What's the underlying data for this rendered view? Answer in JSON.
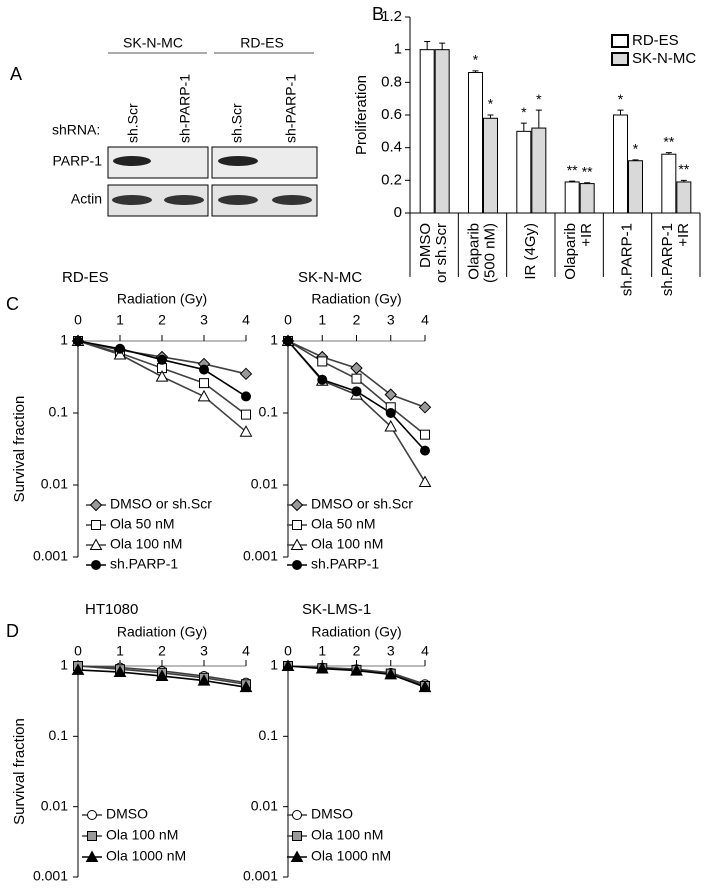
{
  "panel_labels": [
    "A",
    "B",
    "C",
    "D"
  ],
  "blot": {
    "row_header": "shRNA:",
    "groups": [
      {
        "name": "SK-N-MC",
        "lanes": [
          "sh.Scr",
          "sh-PARP-1"
        ]
      },
      {
        "name": "RD-ES",
        "lanes": [
          "sh.Scr",
          "sh-PARP-1"
        ]
      }
    ],
    "rows": [
      "PARP-1",
      "Actin"
    ]
  },
  "chart_data": [
    {
      "type": "bar",
      "ylabel": "Proliferation",
      "categories": [
        "DMSO\nor sh.Scr",
        "Olaparib\n(500 nM)",
        "IR (4Gy)",
        "Olaparib\n+IR",
        "sh.PARP-1",
        "sh.PARP-1\n+IR"
      ],
      "series": [
        {
          "name": "RD-ES",
          "color": "#ffffff",
          "values": [
            1.0,
            0.86,
            0.5,
            0.19,
            0.6,
            0.36
          ],
          "errors": [
            0.05,
            0.01,
            0.05,
            0.005,
            0.03,
            0.01
          ],
          "significance": [
            null,
            "*",
            "*",
            "**",
            "*",
            "**"
          ]
        },
        {
          "name": "SK-N-MC",
          "color": "#d9d9d9",
          "values": [
            1.0,
            0.58,
            0.52,
            0.18,
            0.32,
            0.19
          ],
          "errors": [
            0.04,
            0.02,
            0.11,
            0.005,
            0.005,
            0.01
          ],
          "significance": [
            null,
            "*",
            "*",
            "**",
            "*",
            "**"
          ]
        }
      ],
      "ylim": [
        0,
        1.2
      ],
      "yticks": [
        0,
        0.2,
        0.4,
        0.6,
        0.8,
        1,
        1.2
      ],
      "legend": "upper right"
    },
    {
      "type": "line",
      "title": "RD-ES",
      "xlabel": "Radiation (Gy)",
      "ylabel": "Survival fraction",
      "log_y": true,
      "x": [
        0,
        1,
        2,
        3,
        4
      ],
      "xlim": [
        0,
        4
      ],
      "xticks": [
        0,
        1,
        2,
        3,
        4
      ],
      "ylim": [
        0.001,
        1
      ],
      "yticks": [
        1,
        0.1,
        0.01,
        0.001
      ],
      "legend": "lower left",
      "series": [
        {
          "name": "DMSO or sh.Scr",
          "color": "#404040",
          "marker": "diamond",
          "fill": "#999999",
          "values": [
            1,
            0.75,
            0.6,
            0.48,
            0.35
          ]
        },
        {
          "name": "Ola 50 nM",
          "color": "#404040",
          "marker": "square",
          "fill": "#ffffff",
          "values": [
            1,
            0.68,
            0.42,
            0.26,
            0.095
          ]
        },
        {
          "name": "Ola 100 nM",
          "color": "#404040",
          "marker": "triangle",
          "fill": "#ffffff",
          "values": [
            1,
            0.65,
            0.32,
            0.17,
            0.055
          ]
        },
        {
          "name": "sh.PARP-1",
          "color": "#000000",
          "marker": "circle",
          "fill": "#000000",
          "values": [
            1,
            0.78,
            0.55,
            0.4,
            0.17
          ]
        }
      ]
    },
    {
      "type": "line",
      "title": "SK-N-MC",
      "xlabel": "Radiation (Gy)",
      "log_y": true,
      "x": [
        0,
        1,
        2,
        3,
        4
      ],
      "xlim": [
        0,
        4
      ],
      "xticks": [
        0,
        1,
        2,
        3,
        4
      ],
      "ylim": [
        0.001,
        1
      ],
      "yticks": [
        1,
        0.1,
        0.01,
        0.001
      ],
      "legend": "lower left",
      "series": [
        {
          "name": "DMSO or sh.Scr",
          "color": "#404040",
          "marker": "diamond",
          "fill": "#999999",
          "values": [
            1,
            0.6,
            0.42,
            0.18,
            0.12
          ]
        },
        {
          "name": "Ola 50 nM",
          "color": "#404040",
          "marker": "square",
          "fill": "#ffffff",
          "values": [
            1,
            0.52,
            0.3,
            0.12,
            0.05
          ]
        },
        {
          "name": "Ola 100 nM",
          "color": "#404040",
          "marker": "triangle",
          "fill": "#ffffff",
          "values": [
            1,
            0.28,
            0.18,
            0.065,
            0.011
          ]
        },
        {
          "name": "sh.PARP-1",
          "color": "#000000",
          "marker": "circle",
          "fill": "#000000",
          "values": [
            1,
            0.29,
            0.2,
            0.1,
            0.03
          ]
        }
      ]
    },
    {
      "type": "line",
      "title": "HT1080",
      "xlabel": "Radiation (Gy)",
      "ylabel": "Survival fraction",
      "log_y": true,
      "x": [
        0,
        1,
        2,
        3,
        4
      ],
      "xlim": [
        0,
        4
      ],
      "xticks": [
        0,
        1,
        2,
        3,
        4
      ],
      "ylim": [
        0.001,
        1
      ],
      "yticks": [
        1,
        0.1,
        0.01,
        0.001
      ],
      "legend": "lower left",
      "series": [
        {
          "name": "DMSO",
          "color": "#404040",
          "marker": "circle",
          "fill": "#ffffff",
          "values": [
            1,
            0.95,
            0.85,
            0.72,
            0.58
          ]
        },
        {
          "name": "Ola 100 nM",
          "color": "#404040",
          "marker": "square",
          "fill": "#999999",
          "values": [
            1,
            0.9,
            0.8,
            0.68,
            0.55
          ]
        },
        {
          "name": "Ola 1000 nM",
          "color": "#000000",
          "marker": "triangle",
          "fill": "#000000",
          "values": [
            0.88,
            0.82,
            0.72,
            0.62,
            0.5
          ]
        }
      ]
    },
    {
      "type": "line",
      "title": "SK-LMS-1",
      "xlabel": "Radiation (Gy)",
      "log_y": true,
      "x": [
        0,
        1,
        2,
        3,
        4
      ],
      "xlim": [
        0,
        4
      ],
      "xticks": [
        0,
        1,
        2,
        3,
        4
      ],
      "ylim": [
        0.001,
        1
      ],
      "yticks": [
        1,
        0.1,
        0.01,
        0.001
      ],
      "legend": "lower left",
      "series": [
        {
          "name": "DMSO",
          "color": "#404040",
          "marker": "circle",
          "fill": "#ffffff",
          "values": [
            1,
            0.95,
            0.9,
            0.8,
            0.55
          ]
        },
        {
          "name": "Ola 100 nM",
          "color": "#404040",
          "marker": "square",
          "fill": "#999999",
          "values": [
            1,
            0.93,
            0.88,
            0.78,
            0.52
          ]
        },
        {
          "name": "Ola 1000 nM",
          "color": "#000000",
          "marker": "triangle",
          "fill": "#000000",
          "values": [
            1,
            0.92,
            0.86,
            0.76,
            0.5
          ]
        }
      ]
    }
  ]
}
